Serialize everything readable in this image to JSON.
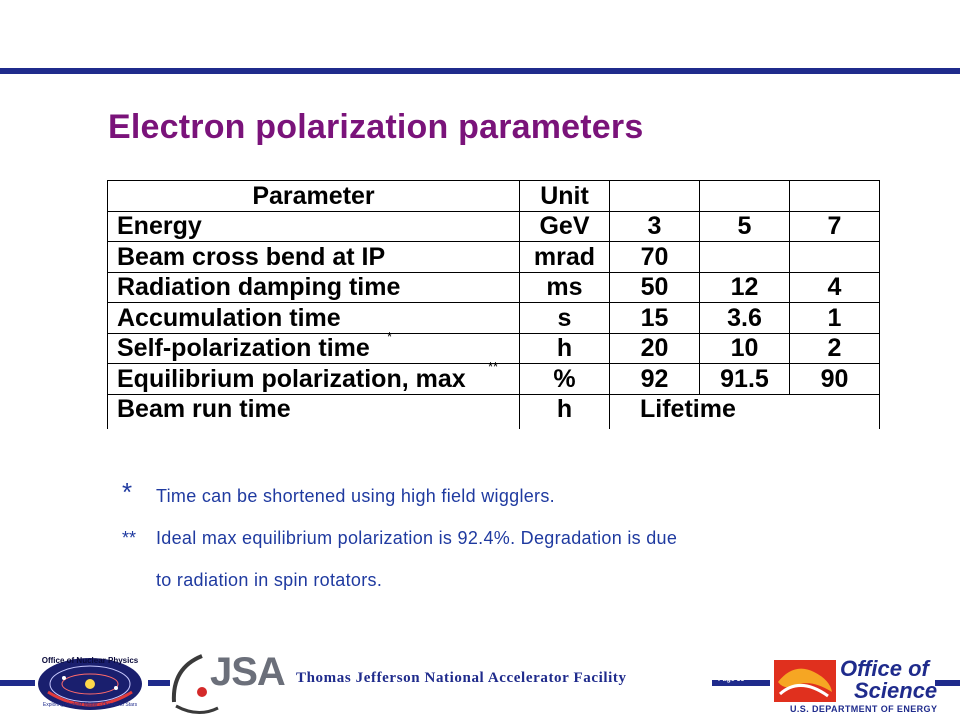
{
  "title": "Electron polarization parameters",
  "table": {
    "header": [
      "Parameter",
      "Unit",
      "",
      "",
      ""
    ],
    "rows": [
      {
        "name": "Energy",
        "unit": "GeV",
        "v1": "3",
        "v2": "5",
        "v3": "7"
      },
      {
        "name": "Beam cross bend at IP",
        "unit": "mrad",
        "v1": "70",
        "v2": "",
        "v3": ""
      },
      {
        "name": "Radiation damping time",
        "unit": "ms",
        "v1": "50",
        "v2": "12",
        "v3": "4"
      },
      {
        "name": "Accumulation time",
        "unit": "s",
        "v1": "15",
        "v2": "3.6",
        "v3": "1"
      },
      {
        "name": "Self-polarization time",
        "mark": "*",
        "unit": "h",
        "v1": "20",
        "v2": "10",
        "v3": "2"
      },
      {
        "name": "Equilibrium polarization, max",
        "mark": "**",
        "unit": "%",
        "v1": "92",
        "v2": "91.5",
        "v3": "90"
      },
      {
        "name": "Beam run time",
        "unit": "h",
        "span": "Lifetime"
      }
    ]
  },
  "footnotes": [
    {
      "mark": "*",
      "text": "Time can be shortened using high field wigglers."
    },
    {
      "mark": "**",
      "text": "Ideal max equilibrium polarization is 92.4%. Degradation is due"
    },
    {
      "mark": "",
      "text": "to radiation in spin rotators."
    }
  ],
  "footer": {
    "organization": "Thomas Jefferson National Accelerator Facility",
    "page": "Page 39",
    "np_logo_title": "Office of Nuclear Physics",
    "np_logo_sub": "Exploring Nuclear Matter - Quarks to Stars",
    "jsa_logo": "JSA",
    "os_line1": "Office of",
    "os_line2": "Science",
    "os_line3": "U.S. DEPARTMENT OF ENERGY"
  },
  "colors": {
    "title": "#7a137a",
    "rule": "#1f2b8c",
    "footnote": "#1f3aa0"
  }
}
